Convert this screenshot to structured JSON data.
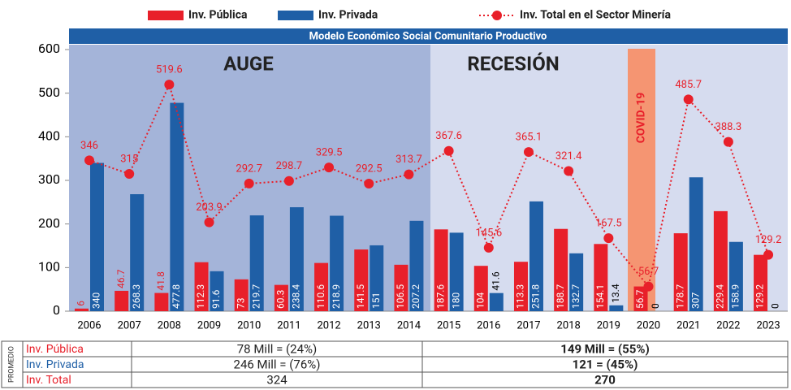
{
  "chart_data": {
    "type": "bar",
    "banner": "Modelo Económico Social Comunitario Productivo",
    "annotations": [
      "AUGE",
      "RECESIÓN",
      "COVID-19"
    ],
    "categories": [
      "2006",
      "2007",
      "2008",
      "2009",
      "2010",
      "2011",
      "2012",
      "2013",
      "2014",
      "2015",
      "2016",
      "2017",
      "2018",
      "2019",
      "2020",
      "2021",
      "2022",
      "2023"
    ],
    "series": [
      {
        "name": "Inv. Pública",
        "color": "#e8202a",
        "values": [
          6,
          46.7,
          41.8,
          112.3,
          73,
          60.3,
          110.6,
          141.5,
          106.5,
          187.6,
          104,
          113.3,
          188.7,
          154.1,
          56.7,
          178.7,
          229.4,
          129.2
        ]
      },
      {
        "name": "Inv. Privada",
        "color": "#1f5fa6",
        "values": [
          340,
          268.3,
          477.8,
          91.6,
          219.7,
          238.4,
          218.9,
          151,
          207.2,
          180,
          41.6,
          251.8,
          132.7,
          13.4,
          0,
          307,
          158.9,
          0
        ]
      },
      {
        "name": "Inv. Total en el Sector Minería",
        "color": "#e8202a",
        "type": "line",
        "values": [
          346,
          315,
          519.6,
          203.9,
          292.7,
          298.7,
          329.5,
          292.5,
          313.7,
          367.6,
          145.6,
          365.1,
          321.4,
          167.5,
          56.7,
          485.7,
          388.3,
          129.2
        ]
      }
    ],
    "ylim": [
      0,
      600
    ],
    "yticks": [
      0,
      100,
      200,
      300,
      400,
      500,
      600
    ],
    "grid": false
  },
  "table": {
    "label": "PROMEDIO",
    "rows": [
      [
        "Inv. Pública",
        "78 Mill = (24%)",
        "149 Mill = (55%)"
      ],
      [
        "Inv. Privada",
        "246 Mill = (76%)",
        "121 = (45%)"
      ],
      [
        "Inv. Total",
        "324",
        "270"
      ]
    ]
  }
}
